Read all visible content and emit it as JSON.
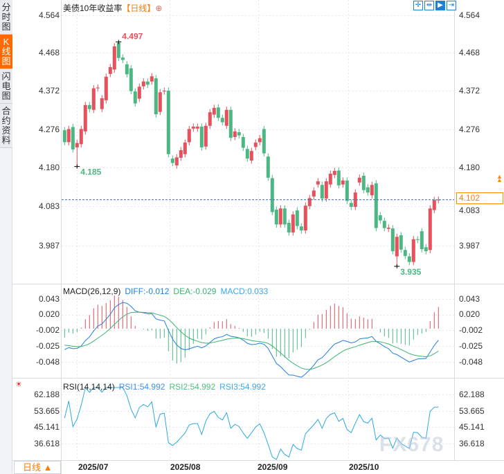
{
  "sidebar": {
    "tabs": [
      {
        "label": "分时图",
        "active": false
      },
      {
        "label": "K线图",
        "active": true
      },
      {
        "label": "闪电图",
        "active": false
      },
      {
        "label": "合约资料",
        "active": false
      }
    ]
  },
  "header": {
    "title": "美债10年收益率",
    "period": "【日线】",
    "plus_icon": "⊕",
    "tools": [
      "crosshair-icon",
      "zoom-range-icon",
      "auto-scale-icon",
      "scroll-right-icon"
    ]
  },
  "price_axis": {
    "labels": [
      "4.564",
      "4.468",
      "4.372",
      "4.276",
      "4.180",
      "4.083",
      "3.987"
    ]
  },
  "last_price": "4.102",
  "annotations": {
    "high": "4.497",
    "low_left": "4.185",
    "low_right": "3.935"
  },
  "macd": {
    "label": "MACD(26,12,9)",
    "diff": "DIFF:-0.012",
    "dea": "DEA:-0.029",
    "macd": "MACD:0.033",
    "axis": [
      "0.043",
      "0.020",
      "-0.002",
      "-0.025",
      "-0.048"
    ]
  },
  "rsi": {
    "label": "RSI(14,14,14)",
    "rsi1": "RSI1:54.992",
    "rsi2": "RSI2:54.992",
    "rsi3": "RSI3:54.992",
    "axis": [
      "62.188",
      "53.665",
      "45.141",
      "36.618"
    ]
  },
  "dates": [
    "2025/07",
    "2025/08",
    "2025/09",
    "2025/10"
  ],
  "period_button": "日线 ▲",
  "watermark": "FX678",
  "colors": {
    "up": "#e8505b",
    "down": "#4cb782",
    "diff": "#1e7fe0",
    "dea": "#3cb371",
    "rsi": "#29a9e0",
    "accent": "#ff7a00"
  },
  "candles_oc": [
    [
      4.276,
      4.246
    ],
    [
      4.246,
      4.279
    ],
    [
      4.284,
      4.228
    ],
    [
      4.233,
      4.244
    ],
    [
      4.241,
      4.279
    ],
    [
      4.273,
      4.339
    ],
    [
      4.339,
      4.329
    ],
    [
      4.327,
      4.381
    ],
    [
      4.381,
      4.383
    ],
    [
      4.329,
      4.356
    ],
    [
      4.351,
      4.41
    ],
    [
      4.417,
      4.434
    ],
    [
      4.428,
      4.486
    ],
    [
      4.495,
      4.457
    ],
    [
      4.458,
      4.452
    ],
    [
      4.441,
      4.416
    ],
    [
      4.431,
      4.374
    ],
    [
      4.373,
      4.343
    ],
    [
      4.355,
      4.385
    ],
    [
      4.386,
      4.398
    ],
    [
      4.398,
      4.39
    ],
    [
      4.398,
      4.411
    ],
    [
      4.406,
      4.316
    ],
    [
      4.322,
      4.371
    ],
    [
      4.373,
      4.375
    ],
    [
      4.375,
      4.216
    ],
    [
      4.205,
      4.194
    ],
    [
      4.188,
      4.208
    ],
    [
      4.207,
      4.226
    ],
    [
      4.216,
      4.245
    ],
    [
      4.246,
      4.279
    ],
    [
      4.28,
      4.285
    ],
    [
      4.28,
      4.285
    ],
    [
      4.285,
      4.233
    ],
    [
      4.235,
      4.287
    ],
    [
      4.287,
      4.321
    ],
    [
      4.315,
      4.332
    ],
    [
      4.333,
      4.307
    ],
    [
      4.307,
      4.296
    ],
    [
      4.287,
      4.327
    ],
    [
      4.327,
      4.257
    ],
    [
      4.259,
      4.273
    ],
    [
      4.271,
      4.263
    ],
    [
      4.259,
      4.232
    ],
    [
      4.229,
      4.205
    ],
    [
      4.2,
      4.224
    ],
    [
      4.234,
      4.245
    ],
    [
      4.246,
      4.256
    ],
    [
      4.279,
      4.218
    ],
    [
      4.21,
      4.157
    ],
    [
      4.156,
      4.071
    ],
    [
      4.077,
      4.04
    ],
    [
      4.04,
      4.08
    ],
    [
      4.08,
      4.04
    ],
    [
      4.044,
      4.02
    ],
    [
      4.02,
      4.065
    ],
    [
      4.075,
      4.036
    ],
    [
      4.035,
      4.025
    ],
    [
      4.025,
      4.087
    ],
    [
      4.086,
      4.106
    ],
    [
      4.11,
      4.125
    ],
    [
      4.14,
      4.148
    ],
    [
      4.139,
      4.105
    ],
    [
      4.105,
      4.148
    ],
    [
      4.14,
      4.167
    ],
    [
      4.164,
      4.174
    ],
    [
      4.175,
      4.138
    ],
    [
      4.14,
      4.15
    ],
    [
      4.15,
      4.099
    ],
    [
      4.094,
      4.084
    ],
    [
      4.084,
      4.12
    ],
    [
      4.145,
      4.157
    ],
    [
      4.162,
      4.126
    ],
    [
      4.133,
      4.12
    ],
    [
      4.113,
      4.139
    ],
    [
      4.143,
      4.031
    ],
    [
      4.063,
      4.05
    ],
    [
      4.049,
      4.031
    ],
    [
      4.029,
      4.032
    ],
    [
      4.03,
      3.973
    ],
    [
      3.96,
      4.009
    ],
    [
      4.013,
      3.977
    ],
    [
      3.976,
      3.961
    ],
    [
      3.96,
      3.946
    ],
    [
      3.946,
      4.003
    ],
    [
      4.003,
      4.001
    ],
    [
      4.023,
      3.978
    ],
    [
      3.983,
      3.973
    ],
    [
      3.976,
      4.08
    ],
    [
      4.076,
      4.101
    ],
    [
      4.101,
      4.102
    ]
  ],
  "extremes": {
    "high": 4.497,
    "high_index": 13,
    "low1": 4.185,
    "low1_index": 3,
    "low2": 3.935,
    "low2_index": 80
  }
}
